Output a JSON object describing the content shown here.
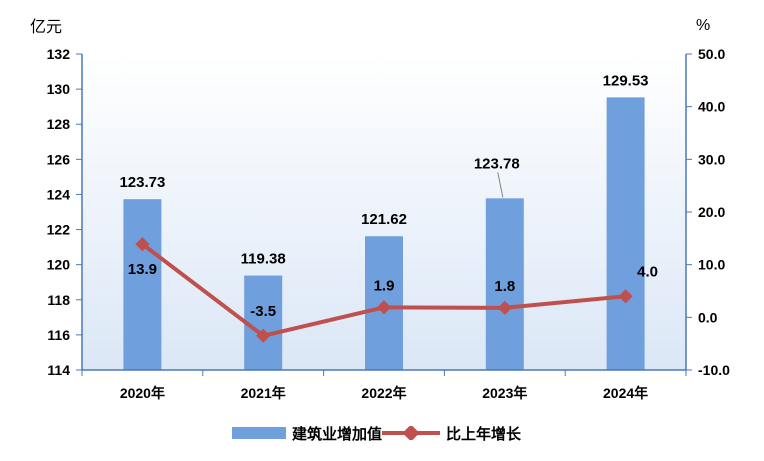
{
  "chart_data": {
    "type": "bar",
    "categories": [
      "2020年",
      "2021年",
      "2022年",
      "2023年",
      "2024年"
    ],
    "left_axis": {
      "unit": "亿元",
      "min": 114,
      "max": 132,
      "step": 2,
      "ticks": [
        "114",
        "116",
        "118",
        "120",
        "122",
        "124",
        "126",
        "128",
        "130",
        "132"
      ]
    },
    "right_axis": {
      "unit": "%",
      "min": -10,
      "max": 50,
      "step": 10,
      "ticks": [
        "-10.0",
        "0.0",
        "10.0",
        "20.0",
        "30.0",
        "40.0",
        "50.0"
      ]
    },
    "series": [
      {
        "name": "建筑业增加值",
        "type": "bar",
        "axis": "left",
        "color": "#6f9fdc",
        "values": [
          123.73,
          119.38,
          121.62,
          123.78,
          129.53
        ],
        "labels": [
          "123.73",
          "119.38",
          "121.62",
          "123.78",
          "129.53"
        ]
      },
      {
        "name": "比上年增长",
        "type": "line",
        "axis": "right",
        "color": "#c0504d",
        "values": [
          13.9,
          -3.5,
          1.9,
          1.8,
          4.0
        ],
        "labels": [
          "13.9",
          "-3.5",
          "1.9",
          "1.8",
          "4.0"
        ]
      }
    ],
    "legend_position": "bottom"
  }
}
